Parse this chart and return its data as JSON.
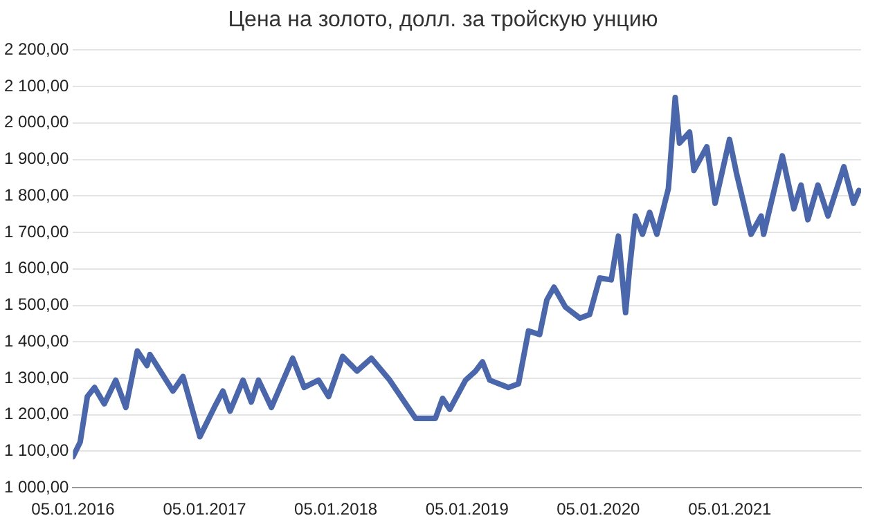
{
  "chart_data": {
    "type": "line",
    "title": "Цена на золото, долл. за тройскую унцию",
    "x": [
      "2016-01-05",
      "2016-01-25",
      "2016-02-14",
      "2016-03-05",
      "2016-04-01",
      "2016-05-03",
      "2016-05-31",
      "2016-07-02",
      "2016-07-29",
      "2016-08-06",
      "2016-10-09",
      "2016-11-06",
      "2016-12-23",
      "2017-02-01",
      "2017-02-25",
      "2017-03-17",
      "2017-04-22",
      "2017-05-15",
      "2017-06-04",
      "2017-07-10",
      "2017-09-07",
      "2017-10-09",
      "2017-11-18",
      "2017-12-16",
      "2018-01-24",
      "2018-03-05",
      "2018-04-14",
      "2018-06-04",
      "2018-08-15",
      "2018-10-09",
      "2018-10-29",
      "2018-11-18",
      "2019-01-01",
      "2019-01-29",
      "2019-02-17",
      "2019-03-09",
      "2019-04-30",
      "2019-05-28",
      "2019-06-25",
      "2019-07-26",
      "2019-08-15",
      "2019-09-04",
      "2019-10-06",
      "2019-11-15",
      "2019-12-12",
      "2020-01-09",
      "2020-02-10",
      "2020-03-01",
      "2020-03-21",
      "2020-04-01",
      "2020-04-17",
      "2020-05-07",
      "2020-05-27",
      "2020-06-16",
      "2020-07-18",
      "2020-08-06",
      "2020-08-18",
      "2020-09-15",
      "2020-09-27",
      "2020-11-02",
      "2020-11-25",
      "2021-01-04",
      "2021-01-24",
      "2021-03-05",
      "2021-04-02",
      "2021-04-09",
      "2021-05-31",
      "2021-07-02",
      "2021-07-22",
      "2021-08-10",
      "2021-09-07",
      "2021-10-05",
      "2021-11-18",
      "2021-12-15",
      "2021-12-30"
    ],
    "series": [
      {
        "color": "#4a67ad",
        "values": [
          1085,
          1125,
          1250,
          1275,
          1230,
          1295,
          1220,
          1375,
          1335,
          1365,
          1265,
          1305,
          1140,
          1220,
          1265,
          1210,
          1295,
          1235,
          1295,
          1220,
          1355,
          1275,
          1295,
          1250,
          1360,
          1320,
          1355,
          1295,
          1190,
          1190,
          1245,
          1215,
          1295,
          1320,
          1345,
          1295,
          1275,
          1285,
          1430,
          1420,
          1515,
          1550,
          1495,
          1465,
          1475,
          1575,
          1570,
          1690,
          1480,
          1600,
          1745,
          1695,
          1755,
          1695,
          1820,
          2070,
          1945,
          1975,
          1870,
          1935,
          1780,
          1955,
          1860,
          1695,
          1745,
          1695,
          1910,
          1765,
          1830,
          1735,
          1830,
          1745,
          1880,
          1780,
          1815
        ]
      }
    ],
    "xlim": [
      "2016-01-05",
      "2022-01-05"
    ],
    "xticks": [
      {
        "value": "2016-01-05",
        "label": "05.01.2016"
      },
      {
        "value": "2017-01-05",
        "label": "05.01.2017"
      },
      {
        "value": "2018-01-05",
        "label": "05.01.2018"
      },
      {
        "value": "2019-01-05",
        "label": "05.01.2019"
      },
      {
        "value": "2020-01-05",
        "label": "05.01.2020"
      },
      {
        "value": "2021-01-05",
        "label": "05.01.2021"
      }
    ],
    "ylim": [
      1000,
      2200
    ],
    "yticks": [
      {
        "value": 1000,
        "label": "1 000,00"
      },
      {
        "value": 1100,
        "label": "1 100,00"
      },
      {
        "value": 1200,
        "label": "1 200,00"
      },
      {
        "value": 1300,
        "label": "1 300,00"
      },
      {
        "value": 1400,
        "label": "1 400,00"
      },
      {
        "value": 1500,
        "label": "1 500,00"
      },
      {
        "value": 1600,
        "label": "1 600,00"
      },
      {
        "value": 1700,
        "label": "1 700,00"
      },
      {
        "value": 1800,
        "label": "1 800,00"
      },
      {
        "value": 1900,
        "label": "1 900,00"
      },
      {
        "value": 2000,
        "label": "2 000,00"
      },
      {
        "value": 2100,
        "label": "2 100,00"
      },
      {
        "value": 2200,
        "label": "2 200,00"
      }
    ],
    "grid": "y",
    "legend": false,
    "marker": "none",
    "line_style": "solid"
  }
}
